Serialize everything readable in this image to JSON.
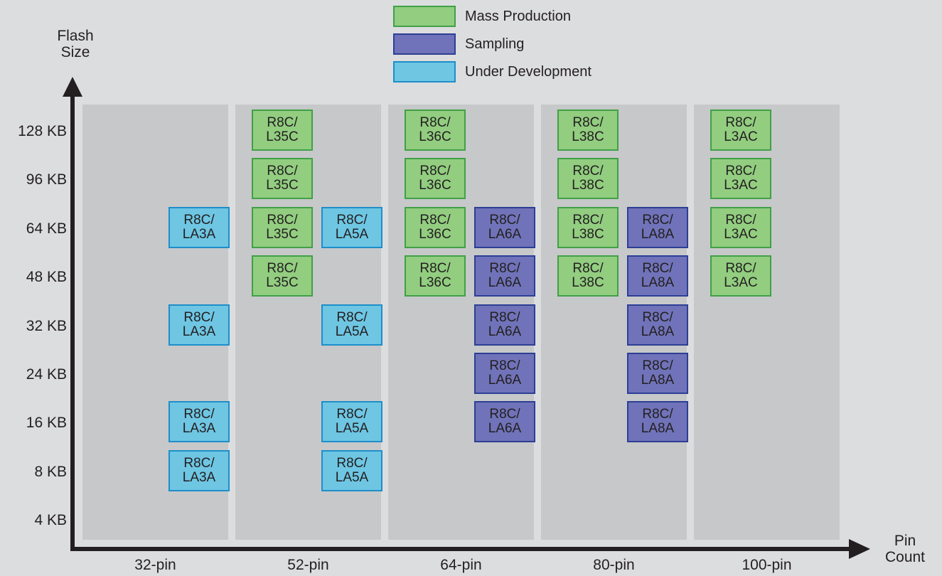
{
  "colors": {
    "mass_production": {
      "fill": "#92cd80",
      "border": "#41a047"
    },
    "sampling": {
      "fill": "#7073b9",
      "border": "#2c3f95"
    },
    "under_development": {
      "fill": "#6ec6e3",
      "border": "#1e8ec9"
    }
  },
  "legend": [
    {
      "key": "mass_production",
      "label": "Mass Production"
    },
    {
      "key": "sampling",
      "label": "Sampling"
    },
    {
      "key": "under_development",
      "label": "Under Development"
    }
  ],
  "y_axis": {
    "title_line1": "Flash",
    "title_line2": "Size",
    "ticks": [
      "128 KB",
      "96 KB",
      "64 KB",
      "48 KB",
      "32 KB",
      "24 KB",
      "16 KB",
      "8 KB",
      "4 KB"
    ]
  },
  "x_axis": {
    "title_line1": "Pin",
    "title_line2": "Count",
    "ticks": [
      "32-pin",
      "52-pin",
      "64-pin",
      "80-pin",
      "100-pin"
    ]
  },
  "chips": [
    {
      "pin": "32-pin",
      "flash": "64 KB",
      "slot": 1,
      "status": "under_development",
      "line1": "R8C/",
      "line2": "LA3A"
    },
    {
      "pin": "32-pin",
      "flash": "32 KB",
      "slot": 1,
      "status": "under_development",
      "line1": "R8C/",
      "line2": "LA3A"
    },
    {
      "pin": "32-pin",
      "flash": "16 KB",
      "slot": 1,
      "status": "under_development",
      "line1": "R8C/",
      "line2": "LA3A"
    },
    {
      "pin": "32-pin",
      "flash": "8 KB",
      "slot": 1,
      "status": "under_development",
      "line1": "R8C/",
      "line2": "LA3A"
    },
    {
      "pin": "52-pin",
      "flash": "128 KB",
      "slot": 0,
      "status": "mass_production",
      "line1": "R8C/",
      "line2": "L35C"
    },
    {
      "pin": "52-pin",
      "flash": "96 KB",
      "slot": 0,
      "status": "mass_production",
      "line1": "R8C/",
      "line2": "L35C"
    },
    {
      "pin": "52-pin",
      "flash": "64 KB",
      "slot": 0,
      "status": "mass_production",
      "line1": "R8C/",
      "line2": "L35C"
    },
    {
      "pin": "52-pin",
      "flash": "48 KB",
      "slot": 0,
      "status": "mass_production",
      "line1": "R8C/",
      "line2": "L35C"
    },
    {
      "pin": "52-pin",
      "flash": "64 KB",
      "slot": 1,
      "status": "under_development",
      "line1": "R8C/",
      "line2": "LA5A"
    },
    {
      "pin": "52-pin",
      "flash": "32 KB",
      "slot": 1,
      "status": "under_development",
      "line1": "R8C/",
      "line2": "LA5A"
    },
    {
      "pin": "52-pin",
      "flash": "16 KB",
      "slot": 1,
      "status": "under_development",
      "line1": "R8C/",
      "line2": "LA5A"
    },
    {
      "pin": "52-pin",
      "flash": "8 KB",
      "slot": 1,
      "status": "under_development",
      "line1": "R8C/",
      "line2": "LA5A"
    },
    {
      "pin": "64-pin",
      "flash": "128 KB",
      "slot": 0,
      "status": "mass_production",
      "line1": "R8C/",
      "line2": "L36C"
    },
    {
      "pin": "64-pin",
      "flash": "96 KB",
      "slot": 0,
      "status": "mass_production",
      "line1": "R8C/",
      "line2": "L36C"
    },
    {
      "pin": "64-pin",
      "flash": "64 KB",
      "slot": 0,
      "status": "mass_production",
      "line1": "R8C/",
      "line2": "L36C"
    },
    {
      "pin": "64-pin",
      "flash": "48 KB",
      "slot": 0,
      "status": "mass_production",
      "line1": "R8C/",
      "line2": "L36C"
    },
    {
      "pin": "64-pin",
      "flash": "64 KB",
      "slot": 1,
      "status": "sampling",
      "line1": "R8C/",
      "line2": "LA6A"
    },
    {
      "pin": "64-pin",
      "flash": "48 KB",
      "slot": 1,
      "status": "sampling",
      "line1": "R8C/",
      "line2": "LA6A"
    },
    {
      "pin": "64-pin",
      "flash": "32 KB",
      "slot": 1,
      "status": "sampling",
      "line1": "R8C/",
      "line2": "LA6A"
    },
    {
      "pin": "64-pin",
      "flash": "24 KB",
      "slot": 1,
      "status": "sampling",
      "line1": "R8C/",
      "line2": "LA6A"
    },
    {
      "pin": "64-pin",
      "flash": "16 KB",
      "slot": 1,
      "status": "sampling",
      "line1": "R8C/",
      "line2": "LA6A"
    },
    {
      "pin": "80-pin",
      "flash": "128 KB",
      "slot": 0,
      "status": "mass_production",
      "line1": "R8C/",
      "line2": "L38C"
    },
    {
      "pin": "80-pin",
      "flash": "96 KB",
      "slot": 0,
      "status": "mass_production",
      "line1": "R8C/",
      "line2": "L38C"
    },
    {
      "pin": "80-pin",
      "flash": "64 KB",
      "slot": 0,
      "status": "mass_production",
      "line1": "R8C/",
      "line2": "L38C"
    },
    {
      "pin": "80-pin",
      "flash": "48 KB",
      "slot": 0,
      "status": "mass_production",
      "line1": "R8C/",
      "line2": "L38C"
    },
    {
      "pin": "80-pin",
      "flash": "64 KB",
      "slot": 1,
      "status": "sampling",
      "line1": "R8C/",
      "line2": "LA8A"
    },
    {
      "pin": "80-pin",
      "flash": "48 KB",
      "slot": 1,
      "status": "sampling",
      "line1": "R8C/",
      "line2": "LA8A"
    },
    {
      "pin": "80-pin",
      "flash": "32 KB",
      "slot": 1,
      "status": "sampling",
      "line1": "R8C/",
      "line2": "LA8A"
    },
    {
      "pin": "80-pin",
      "flash": "24 KB",
      "slot": 1,
      "status": "sampling",
      "line1": "R8C/",
      "line2": "LA8A"
    },
    {
      "pin": "80-pin",
      "flash": "16 KB",
      "slot": 1,
      "status": "sampling",
      "line1": "R8C/",
      "line2": "LA8A"
    },
    {
      "pin": "100-pin",
      "flash": "128 KB",
      "slot": 0,
      "status": "mass_production",
      "line1": "R8C/",
      "line2": "L3AC"
    },
    {
      "pin": "100-pin",
      "flash": "96 KB",
      "slot": 0,
      "status": "mass_production",
      "line1": "R8C/",
      "line2": "L3AC"
    },
    {
      "pin": "100-pin",
      "flash": "64 KB",
      "slot": 0,
      "status": "mass_production",
      "line1": "R8C/",
      "line2": "L3AC"
    },
    {
      "pin": "100-pin",
      "flash": "48 KB",
      "slot": 0,
      "status": "mass_production",
      "line1": "R8C/",
      "line2": "L3AC"
    }
  ]
}
